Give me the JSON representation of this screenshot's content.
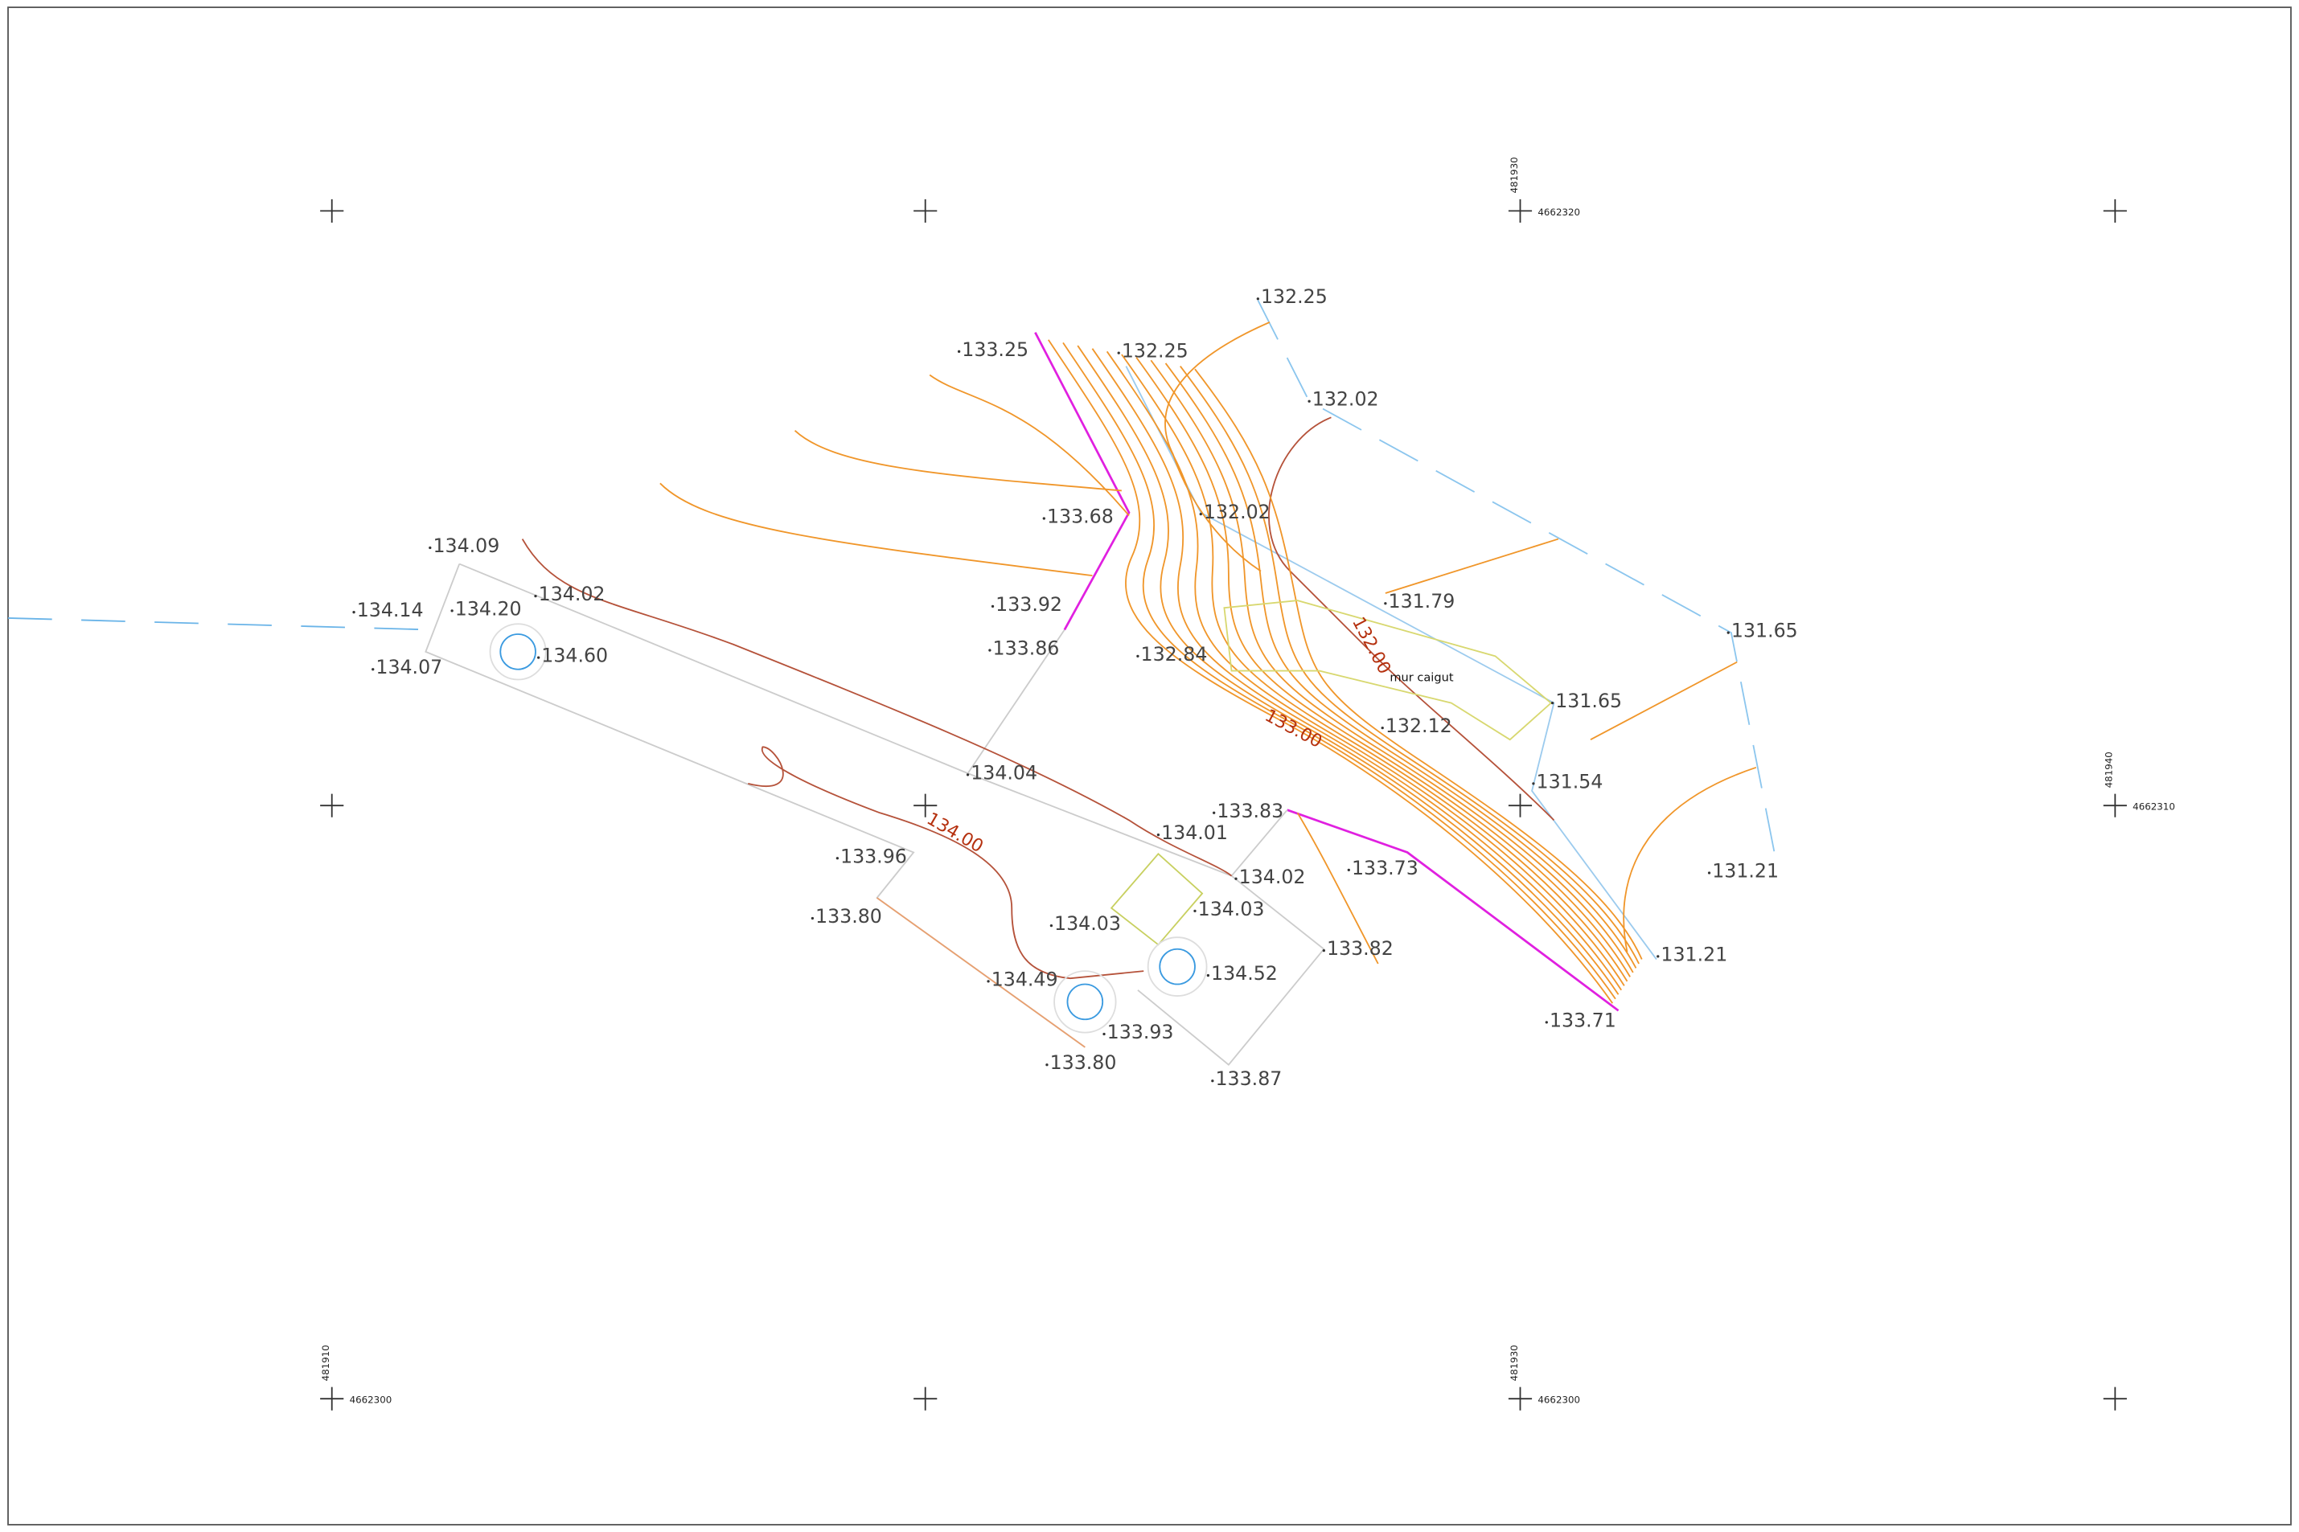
{
  "spot_elevations": [
    "132.25",
    "133.25",
    "132.25",
    "132.02",
    "133.68",
    "132.02",
    "134.09",
    "134.14",
    "134.20",
    "134.02",
    "134.60",
    "134.07",
    "133.92",
    "133.86",
    "132.84",
    "131.79",
    "131.65",
    "131.65",
    "132.12",
    "131.54",
    "134.04",
    "133.83",
    "134.01",
    "133.73",
    "134.02",
    "133.96",
    "131.21",
    "133.80",
    "134.03",
    "134.03",
    "133.82",
    "131.21",
    "134.52",
    "134.49",
    "133.93",
    "133.71",
    "133.80",
    "133.87"
  ],
  "contour_labels": [
    "132.00",
    "133.00",
    "134.00"
  ],
  "annotation": "mur caigut",
  "grid_coordinates": [
    {
      "easting": "481930",
      "northing": "4662320"
    },
    {
      "easting": "481940",
      "northing": "4662310"
    },
    {
      "easting": "481910",
      "northing": "4662300"
    },
    {
      "easting": "481930",
      "northing": "4662300"
    }
  ]
}
